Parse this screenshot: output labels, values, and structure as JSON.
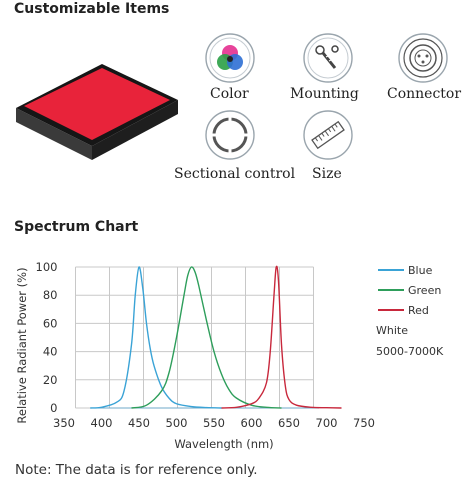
{
  "sections": {
    "customizable_title": "Customizable Items",
    "spectrum_title": "Spectrum Chart"
  },
  "product": {
    "icon": "red-panel-light",
    "color": "#e8233a"
  },
  "items": [
    {
      "label": "Color",
      "icon": "color-circles-icon"
    },
    {
      "label": "Mounting",
      "icon": "mounting-screws-icon"
    },
    {
      "label": "Connector",
      "icon": "connector-plug-icon"
    },
    {
      "label": "Sectional control",
      "icon": "sectional-control-icon"
    },
    {
      "label": "Size",
      "icon": "ruler-icon"
    }
  ],
  "chart_data": {
    "type": "line",
    "xlabel": "Wavelength (nm)",
    "ylabel": "Relative Radiant Power (%)",
    "xlim": [
      350,
      750
    ],
    "ylim": [
      0,
      100
    ],
    "xticks": [
      350,
      400,
      450,
      500,
      550,
      600,
      650,
      700,
      750
    ],
    "yticks": [
      0,
      20,
      40,
      60,
      80,
      100
    ],
    "grid": true,
    "legend_position": "right",
    "series": [
      {
        "name": "Blue",
        "color": "#3aa3d6",
        "x": [
          385,
          400,
          420,
          430,
          440,
          445,
          450,
          455,
          460,
          465,
          470,
          480,
          490,
          500,
          520,
          540,
          560
        ],
        "y": [
          0,
          0.5,
          4,
          12,
          45,
          80,
          100,
          85,
          60,
          42,
          30,
          15,
          7,
          3,
          1,
          0.3,
          0
        ]
      },
      {
        "name": "Green",
        "color": "#2e9e5b",
        "x": [
          440,
          460,
          480,
          490,
          500,
          510,
          515,
          520,
          525,
          530,
          540,
          550,
          560,
          570,
          580,
          600,
          620,
          640
        ],
        "y": [
          0,
          2,
          12,
          25,
          50,
          80,
          94,
          100,
          96,
          86,
          62,
          40,
          24,
          13,
          7,
          2,
          0.5,
          0
        ]
      },
      {
        "name": "Red",
        "color": "#c8283c",
        "x": [
          560,
          580,
          600,
          610,
          620,
          625,
          630,
          633,
          636,
          640,
          645,
          650,
          660,
          680,
          700,
          720
        ],
        "y": [
          0,
          0.5,
          3,
          7,
          18,
          40,
          80,
          100,
          90,
          45,
          16,
          6,
          2,
          0.5,
          0.2,
          0
        ]
      }
    ],
    "legend_extra": [
      "White",
      "5000-7000K"
    ]
  },
  "note": "Note: The data is for reference only."
}
